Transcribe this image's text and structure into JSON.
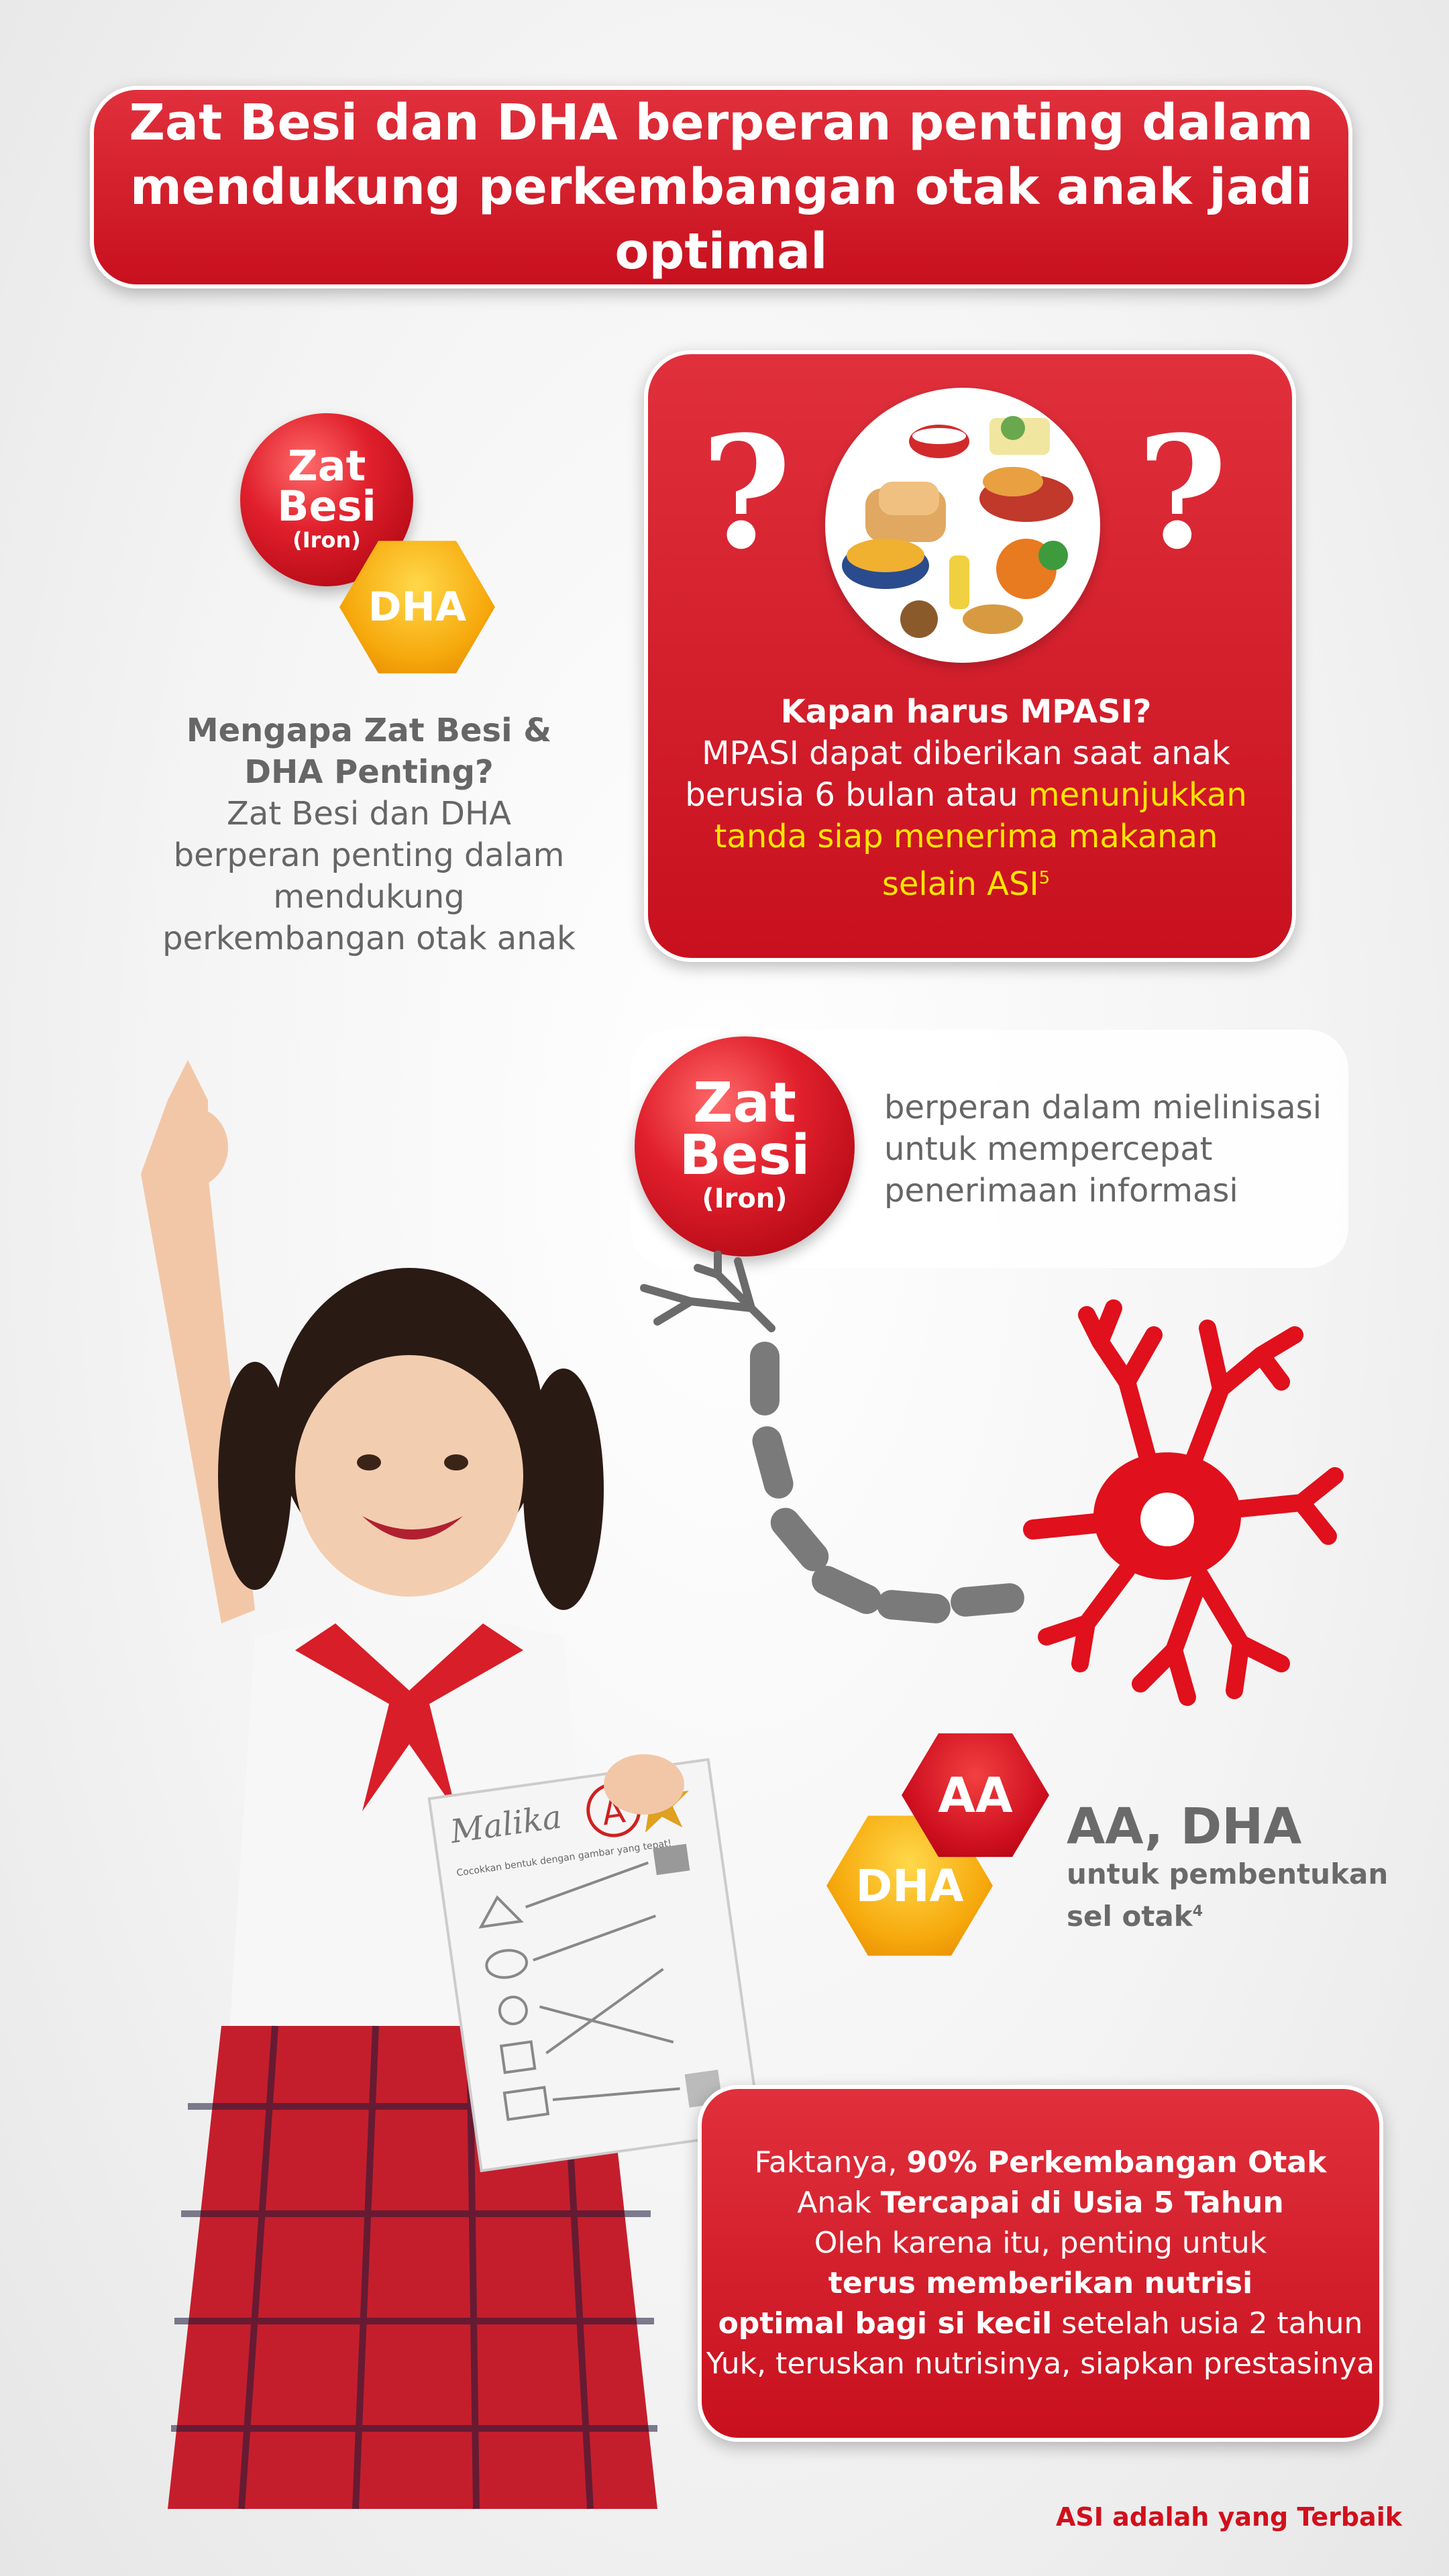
{
  "header": {
    "line1": "Zat Besi dan DHA berperan penting dalam",
    "line2": "mendukung perkembangan otak anak jadi optimal"
  },
  "left_badge": {
    "iron_line1": "Zat",
    "iron_line2": "Besi",
    "iron_sub": "(Iron)",
    "dha": "DHA"
  },
  "why": {
    "heading_line1": "Mengapa Zat Besi &",
    "heading_line2": "DHA Penting?",
    "body_line1": "Zat Besi dan DHA",
    "body_line2": "berperan penting dalam",
    "body_line3": "mendukung",
    "body_line4": "perkembangan otak anak"
  },
  "mpasi": {
    "question_mark": "?",
    "heading": "Kapan harus MPASI?",
    "line1": "MPASI dapat diberikan saat anak",
    "line2_plain": "berusia 6 bulan atau ",
    "line2_highlight": "menunjukkan",
    "line3": "tanda siap menerima makanan",
    "line4": "selain ASI",
    "line4_sup": "5"
  },
  "iron_info": {
    "ball_line1": "Zat",
    "ball_line2": "Besi",
    "ball_sub": "(Iron)",
    "text_line1": "berperan dalam mielinisasi",
    "text_line2": "untuk mempercepat",
    "text_line3": "penerimaan informasi"
  },
  "aa_dha": {
    "hex_aa": "AA",
    "hex_dha": "DHA",
    "title": "AA, DHA",
    "line1": "untuk pembentukan",
    "line2": "sel otak",
    "sup": "4"
  },
  "worksheet": {
    "name": "Malika",
    "grade": "A",
    "instruction": "Cocokkan bentuk dengan gambar yang tepat!"
  },
  "fact": {
    "l1_a": "Faktanya, ",
    "l1_b": "90% Perkembangan Otak",
    "l2_a": "Anak ",
    "l2_b": "Tercapai di Usia 5 Tahun",
    "l3": "Oleh karena itu, penting untuk",
    "l4": "terus memberikan nutrisi",
    "l5_a": "optimal bagi si kecil",
    "l5_b": " setelah usia 2 tahun",
    "l6": "Yuk, teruskan nutrisinya, siapkan prestasinya"
  },
  "footer": {
    "note": "ASI adalah yang Terbaik"
  },
  "colors": {
    "brand_red": "#c8101e",
    "highlight_yellow": "#ffe600",
    "gold": "#f6a90c",
    "text_grey": "#666666"
  }
}
